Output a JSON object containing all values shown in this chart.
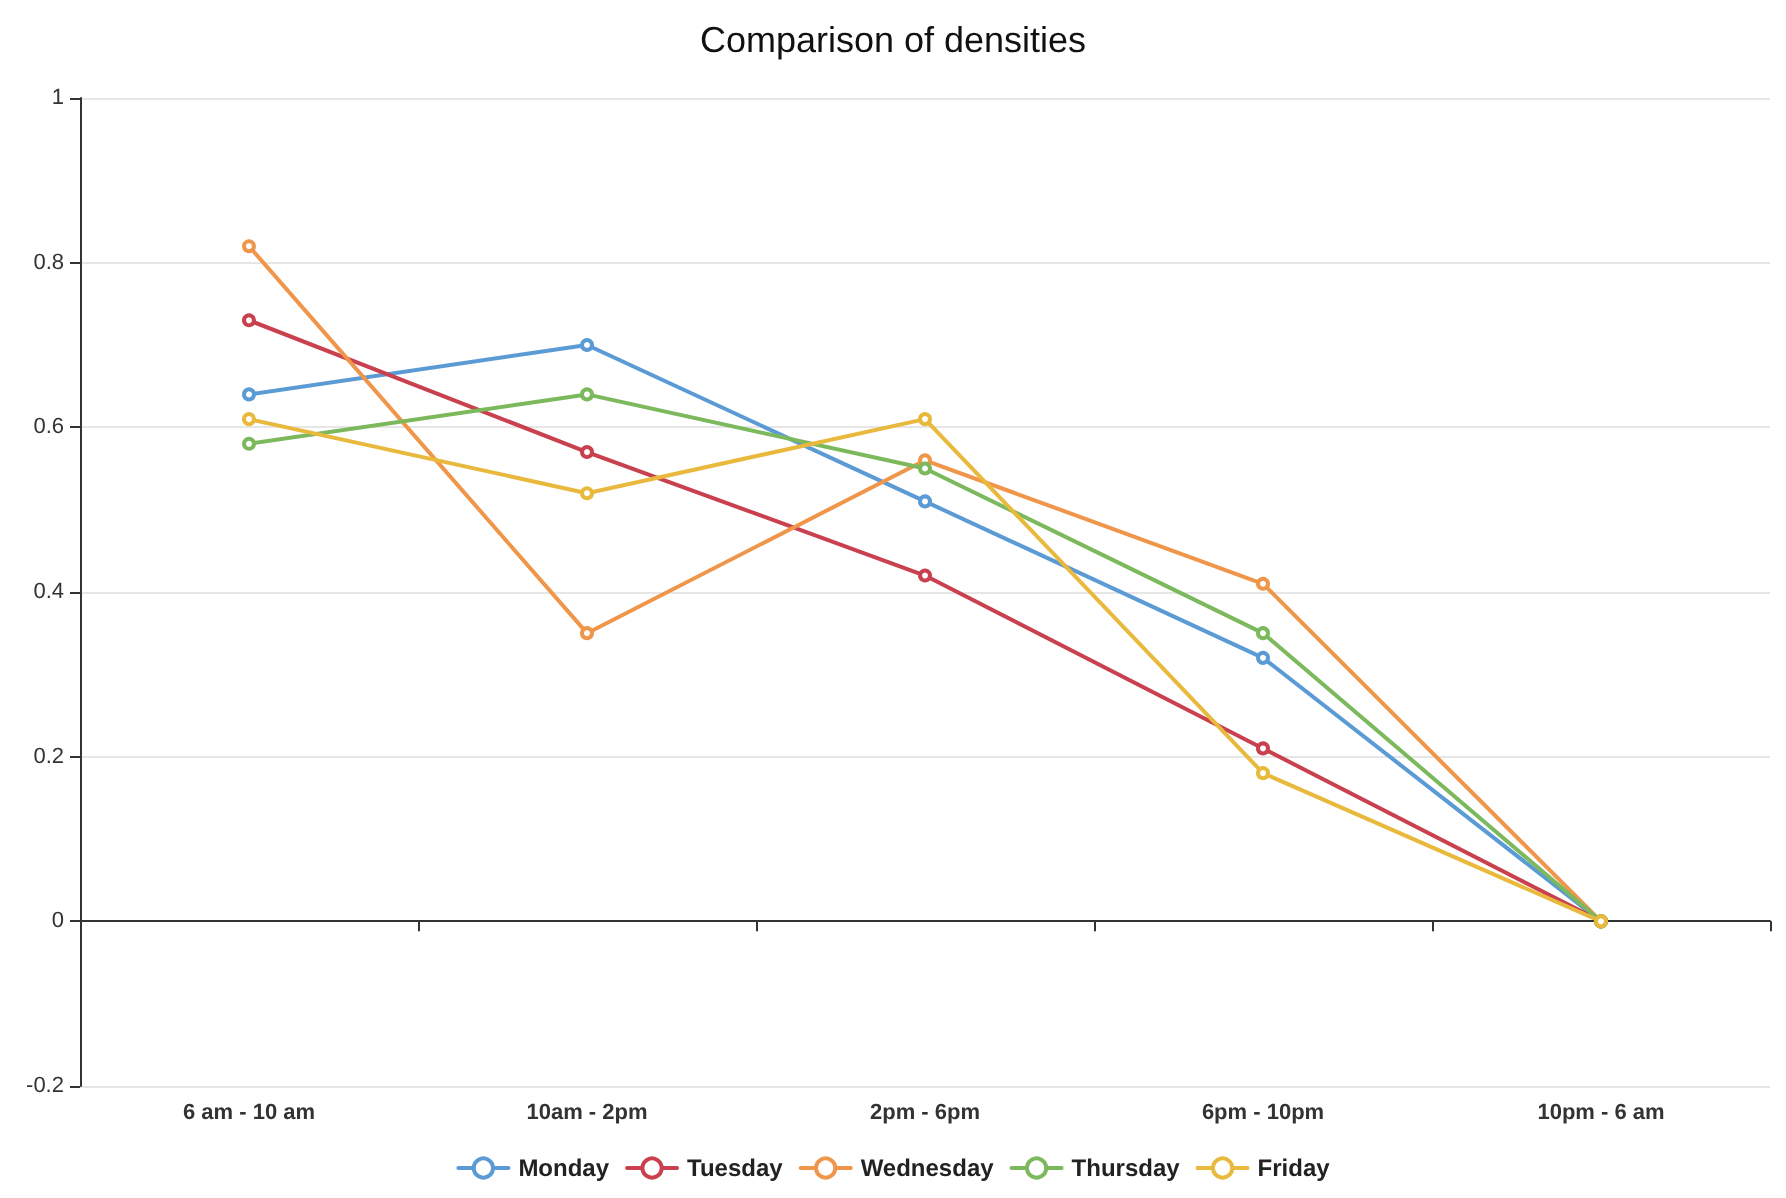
{
  "chart_data": {
    "type": "line",
    "title": "Comparison of densities",
    "categories": [
      "6 am - 10 am",
      "10am - 2pm",
      "2pm - 6pm",
      "6pm - 10pm",
      "10pm - 6 am"
    ],
    "series": [
      {
        "name": "Monday",
        "color": "#5b9bd5",
        "values": [
          0.64,
          0.7,
          0.51,
          0.32,
          0
        ]
      },
      {
        "name": "Tuesday",
        "color": "#c9404e",
        "values": [
          0.73,
          0.57,
          0.42,
          0.21,
          0
        ]
      },
      {
        "name": "Wednesday",
        "color": "#f0964a",
        "values": [
          0.82,
          0.35,
          0.56,
          0.41,
          0
        ]
      },
      {
        "name": "Thursday",
        "color": "#7cb85c",
        "values": [
          0.58,
          0.64,
          0.55,
          0.35,
          0
        ]
      },
      {
        "name": "Friday",
        "color": "#e8b93c",
        "values": [
          0.61,
          0.52,
          0.61,
          0.18,
          0
        ]
      }
    ],
    "ylim": [
      -0.2,
      1
    ],
    "yticks": [
      -0.2,
      0,
      0.2,
      0.4,
      0.6,
      0.8,
      1
    ],
    "grid": "y",
    "legend": "bottom",
    "marker": "circle",
    "line_style": "solid"
  }
}
